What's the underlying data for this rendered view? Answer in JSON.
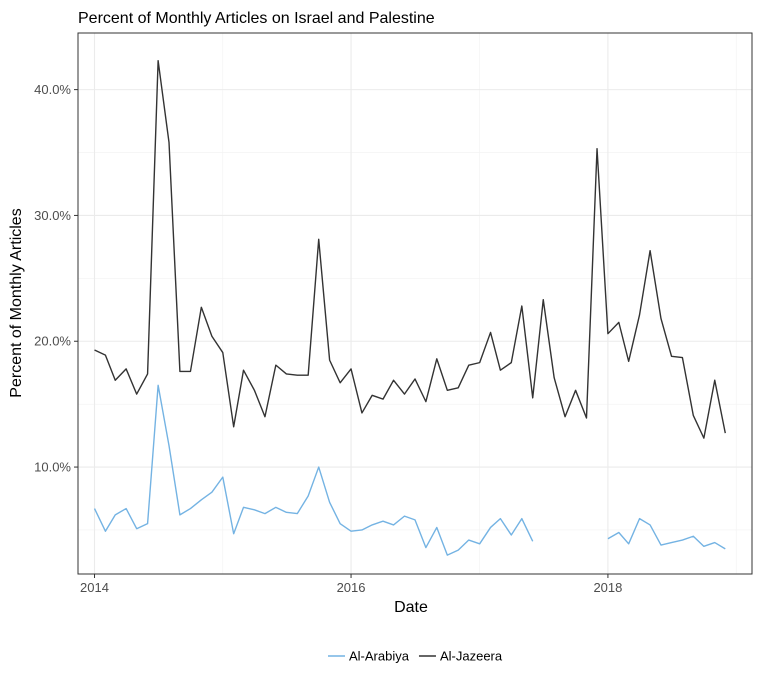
{
  "chart_data": {
    "type": "line",
    "title": "Percent of Monthly Articles on Israel and Palestine",
    "xlabel": "Date",
    "ylabel": "Percent of Monthly Articles",
    "x_axis_type": "date",
    "xlim": [
      "2013-11-15",
      "2019-02-15"
    ],
    "ylim": [
      1.5,
      44.5
    ],
    "x_ticks": [
      {
        "value": "2014-01-01",
        "label": "2014"
      },
      {
        "value": "2016-01-01",
        "label": "2016"
      },
      {
        "value": "2018-01-01",
        "label": "2018"
      }
    ],
    "y_ticks": [
      {
        "value": 10,
        "label": "10.0%"
      },
      {
        "value": 20,
        "label": "20.0%"
      },
      {
        "value": 30,
        "label": "30.0%"
      },
      {
        "value": 40,
        "label": "40.0%"
      }
    ],
    "grid": true,
    "legend_position": "bottom",
    "series": [
      {
        "name": "Al-Arabiya",
        "color": "#74b3e3",
        "points": [
          [
            "2014-01-01",
            6.7
          ],
          [
            "2014-02-01",
            4.9
          ],
          [
            "2014-03-01",
            6.2
          ],
          [
            "2014-04-01",
            6.7
          ],
          [
            "2014-05-01",
            5.1
          ],
          [
            "2014-06-01",
            5.5
          ],
          [
            "2014-07-01",
            16.5
          ],
          [
            "2014-08-01",
            11.7
          ],
          [
            "2014-09-01",
            6.2
          ],
          [
            "2014-10-01",
            6.7
          ],
          [
            "2014-11-01",
            7.4
          ],
          [
            "2014-12-01",
            8.0
          ],
          [
            "2015-01-01",
            9.2
          ],
          [
            "2015-02-01",
            4.7
          ],
          [
            "2015-03-01",
            6.8
          ],
          [
            "2015-04-01",
            6.6
          ],
          [
            "2015-05-01",
            6.3
          ],
          [
            "2015-06-01",
            6.8
          ],
          [
            "2015-07-01",
            6.4
          ],
          [
            "2015-08-01",
            6.3
          ],
          [
            "2015-09-01",
            7.7
          ],
          [
            "2015-10-01",
            10.0
          ],
          [
            "2015-11-01",
            7.2
          ],
          [
            "2015-12-01",
            5.5
          ],
          [
            "2016-01-01",
            4.9
          ],
          [
            "2016-02-01",
            5.0
          ],
          [
            "2016-03-01",
            5.4
          ],
          [
            "2016-04-01",
            5.7
          ],
          [
            "2016-05-01",
            5.4
          ],
          [
            "2016-06-01",
            6.1
          ],
          [
            "2016-07-01",
            5.8
          ],
          [
            "2016-08-01",
            3.6
          ],
          [
            "2016-09-01",
            5.2
          ],
          [
            "2016-10-01",
            3.0
          ],
          [
            "2016-11-01",
            3.4
          ],
          [
            "2016-12-01",
            4.2
          ],
          [
            "2017-01-01",
            3.9
          ],
          [
            "2017-02-01",
            5.2
          ],
          [
            "2017-03-01",
            5.9
          ],
          [
            "2017-04-01",
            4.6
          ],
          [
            "2017-05-01",
            5.9
          ],
          [
            "2017-06-01",
            4.1
          ],
          [
            "2017-07-01",
            null
          ],
          [
            "2017-08-01",
            null
          ],
          [
            "2017-09-01",
            null
          ],
          [
            "2017-10-01",
            null
          ],
          [
            "2017-11-01",
            null
          ],
          [
            "2017-12-01",
            null
          ],
          [
            "2018-01-01",
            4.3
          ],
          [
            "2018-02-01",
            4.8
          ],
          [
            "2018-03-01",
            3.9
          ],
          [
            "2018-04-01",
            5.9
          ],
          [
            "2018-05-01",
            5.4
          ],
          [
            "2018-06-01",
            3.8
          ],
          [
            "2018-07-01",
            4.0
          ],
          [
            "2018-08-01",
            4.2
          ],
          [
            "2018-09-01",
            4.5
          ],
          [
            "2018-10-01",
            3.7
          ],
          [
            "2018-11-01",
            4.0
          ],
          [
            "2018-12-01",
            3.5
          ]
        ]
      },
      {
        "name": "Al-Jazeera",
        "color": "#333333",
        "points": [
          [
            "2014-01-01",
            19.3
          ],
          [
            "2014-02-01",
            18.9
          ],
          [
            "2014-03-01",
            16.9
          ],
          [
            "2014-04-01",
            17.8
          ],
          [
            "2014-05-01",
            15.8
          ],
          [
            "2014-06-01",
            17.4
          ],
          [
            "2014-07-01",
            42.3
          ],
          [
            "2014-08-01",
            35.8
          ],
          [
            "2014-09-01",
            17.6
          ],
          [
            "2014-10-01",
            17.6
          ],
          [
            "2014-11-01",
            22.7
          ],
          [
            "2014-12-01",
            20.4
          ],
          [
            "2015-01-01",
            19.1
          ],
          [
            "2015-02-01",
            13.2
          ],
          [
            "2015-03-01",
            17.7
          ],
          [
            "2015-04-01",
            16.1
          ],
          [
            "2015-05-01",
            14.0
          ],
          [
            "2015-06-01",
            18.1
          ],
          [
            "2015-07-01",
            17.4
          ],
          [
            "2015-08-01",
            17.3
          ],
          [
            "2015-09-01",
            17.3
          ],
          [
            "2015-10-01",
            28.1
          ],
          [
            "2015-11-01",
            18.5
          ],
          [
            "2015-12-01",
            16.7
          ],
          [
            "2016-01-01",
            17.8
          ],
          [
            "2016-02-01",
            14.3
          ],
          [
            "2016-03-01",
            15.7
          ],
          [
            "2016-04-01",
            15.4
          ],
          [
            "2016-05-01",
            16.9
          ],
          [
            "2016-06-01",
            15.8
          ],
          [
            "2016-07-01",
            17.0
          ],
          [
            "2016-08-01",
            15.2
          ],
          [
            "2016-09-01",
            18.6
          ],
          [
            "2016-10-01",
            16.1
          ],
          [
            "2016-11-01",
            16.3
          ],
          [
            "2016-12-01",
            18.1
          ],
          [
            "2017-01-01",
            18.3
          ],
          [
            "2017-02-01",
            20.7
          ],
          [
            "2017-03-01",
            17.7
          ],
          [
            "2017-04-01",
            18.3
          ],
          [
            "2017-05-01",
            22.8
          ],
          [
            "2017-06-01",
            15.5
          ],
          [
            "2017-07-01",
            23.3
          ],
          [
            "2017-08-01",
            17.1
          ],
          [
            "2017-09-01",
            14.0
          ],
          [
            "2017-10-01",
            16.1
          ],
          [
            "2017-11-01",
            13.9
          ],
          [
            "2017-12-01",
            35.3
          ],
          [
            "2018-01-01",
            20.6
          ],
          [
            "2018-02-01",
            21.5
          ],
          [
            "2018-03-01",
            18.4
          ],
          [
            "2018-04-01",
            22.1
          ],
          [
            "2018-05-01",
            27.2
          ],
          [
            "2018-06-01",
            21.8
          ],
          [
            "2018-07-01",
            18.8
          ],
          [
            "2018-08-01",
            18.7
          ],
          [
            "2018-09-01",
            14.1
          ],
          [
            "2018-10-01",
            12.3
          ],
          [
            "2018-11-01",
            16.9
          ],
          [
            "2018-12-01",
            12.7
          ]
        ]
      }
    ]
  }
}
